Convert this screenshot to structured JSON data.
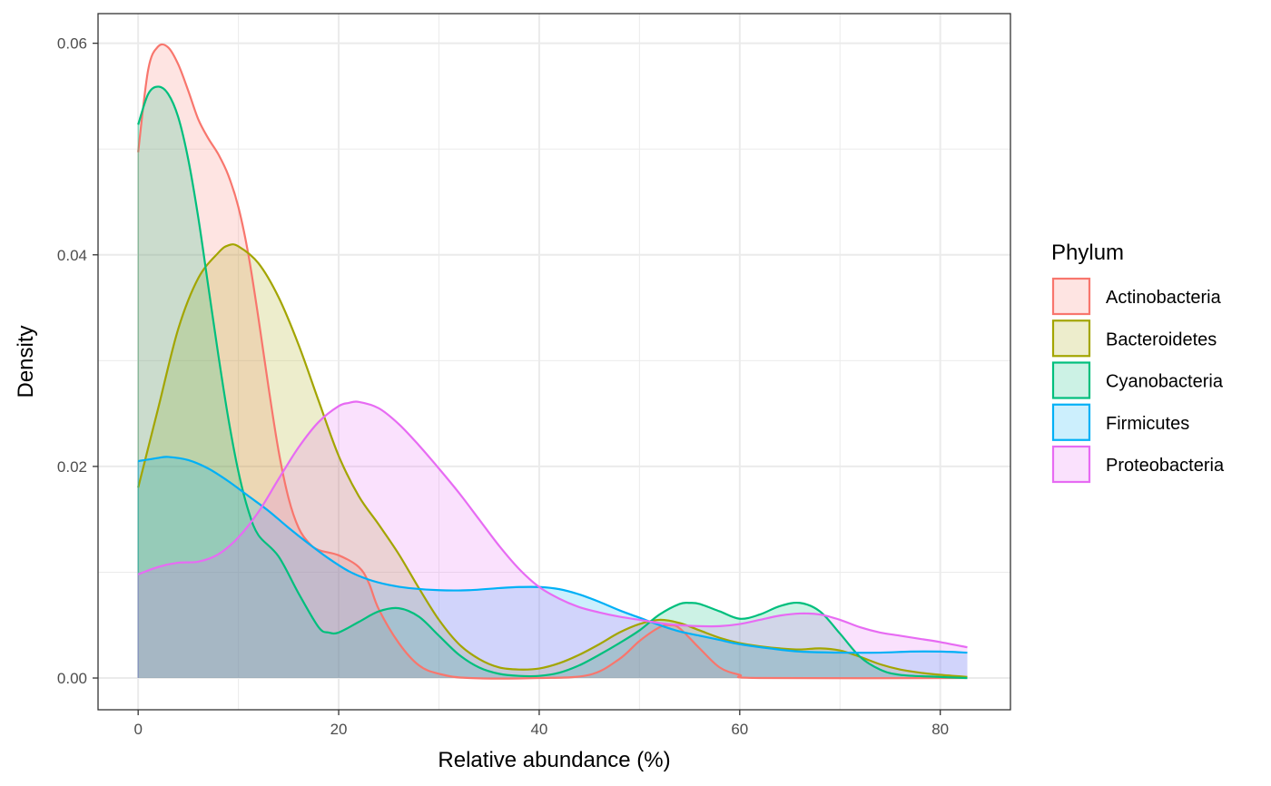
{
  "chart_data": {
    "type": "area",
    "subtype": "density",
    "title": "",
    "xlabel": "Relative abundance (%)",
    "ylabel": "Density",
    "xlim": [
      -4,
      87
    ],
    "ylim": [
      -0.003,
      0.0628
    ],
    "x_ticks": [
      0,
      20,
      40,
      60,
      80
    ],
    "x_tick_labels": [
      "0",
      "20",
      "40",
      "60",
      "80"
    ],
    "y_ticks": [
      0,
      0.02,
      0.04,
      0.06
    ],
    "y_tick_labels": [
      "0.00",
      "0.02",
      "0.04",
      "0.06"
    ],
    "grid": true,
    "legend": {
      "title": "Phylum",
      "placement": "right"
    },
    "fill_opacity": 0.2,
    "series": [
      {
        "name": "Actinobacteria",
        "color": "#F8766D",
        "points": [
          [
            0,
            0.0497
          ],
          [
            1,
            0.0575
          ],
          [
            2,
            0.0597
          ],
          [
            3,
            0.0596
          ],
          [
            4,
            0.058
          ],
          [
            5,
            0.0555
          ],
          [
            6,
            0.0528
          ],
          [
            7,
            0.051
          ],
          [
            8,
            0.0495
          ],
          [
            9,
            0.0475
          ],
          [
            10,
            0.0445
          ],
          [
            11,
            0.04
          ],
          [
            12,
            0.034
          ],
          [
            13,
            0.0275
          ],
          [
            14,
            0.0215
          ],
          [
            15,
            0.017
          ],
          [
            16,
            0.0142
          ],
          [
            17,
            0.0128
          ],
          [
            18,
            0.0121
          ],
          [
            20,
            0.0116
          ],
          [
            22,
            0.0105
          ],
          [
            23,
            0.009
          ],
          [
            24,
            0.0065
          ],
          [
            26,
            0.0033
          ],
          [
            28,
            0.0012
          ],
          [
            30,
            0.0004
          ],
          [
            33,
            0.0
          ],
          [
            40,
            0.0
          ],
          [
            45,
            0.0003
          ],
          [
            48,
            0.0018
          ],
          [
            50,
            0.0035
          ],
          [
            52,
            0.0048
          ],
          [
            53,
            0.005
          ],
          [
            54,
            0.0047
          ],
          [
            56,
            0.0028
          ],
          [
            58,
            0.001
          ],
          [
            60,
            0.0003
          ],
          [
            62,
            0.0
          ],
          [
            82.7,
            0.0
          ]
        ]
      },
      {
        "name": "Bacteroidetes",
        "color": "#A3A500",
        "points": [
          [
            0,
            0.018
          ],
          [
            2,
            0.0255
          ],
          [
            4,
            0.033
          ],
          [
            6,
            0.0378
          ],
          [
            8,
            0.0402
          ],
          [
            9,
            0.0409
          ],
          [
            10,
            0.0408
          ],
          [
            12,
            0.0392
          ],
          [
            14,
            0.036
          ],
          [
            16,
            0.0315
          ],
          [
            18,
            0.0262
          ],
          [
            20,
            0.021
          ],
          [
            22,
            0.0172
          ],
          [
            24,
            0.0145
          ],
          [
            26,
            0.0117
          ],
          [
            28,
            0.0085
          ],
          [
            30,
            0.0055
          ],
          [
            32,
            0.0032
          ],
          [
            34,
            0.0018
          ],
          [
            36,
            0.001
          ],
          [
            38,
            0.0008
          ],
          [
            40,
            0.0009
          ],
          [
            42,
            0.0014
          ],
          [
            44,
            0.0022
          ],
          [
            46,
            0.0032
          ],
          [
            48,
            0.0043
          ],
          [
            50,
            0.0051
          ],
          [
            52,
            0.0055
          ],
          [
            54,
            0.0052
          ],
          [
            56,
            0.0045
          ],
          [
            58,
            0.0038
          ],
          [
            60,
            0.0033
          ],
          [
            62,
            0.003
          ],
          [
            64,
            0.0028
          ],
          [
            66,
            0.0027
          ],
          [
            68,
            0.0028
          ],
          [
            70,
            0.0026
          ],
          [
            72,
            0.002
          ],
          [
            74,
            0.0013
          ],
          [
            76,
            0.0008
          ],
          [
            78,
            0.0005
          ],
          [
            80,
            0.0003
          ],
          [
            82.7,
            0.0001
          ]
        ]
      },
      {
        "name": "Cyanobacteria",
        "color": "#00BF7D",
        "points": [
          [
            0,
            0.0523
          ],
          [
            1,
            0.0552
          ],
          [
            2,
            0.0559
          ],
          [
            3,
            0.0552
          ],
          [
            4,
            0.053
          ],
          [
            5,
            0.049
          ],
          [
            6,
            0.0435
          ],
          [
            7,
            0.037
          ],
          [
            8,
            0.0305
          ],
          [
            9,
            0.0245
          ],
          [
            10,
            0.0195
          ],
          [
            11,
            0.0158
          ],
          [
            12,
            0.0135
          ],
          [
            14,
            0.0115
          ],
          [
            16,
            0.008
          ],
          [
            18,
            0.0048
          ],
          [
            19,
            0.0043
          ],
          [
            20,
            0.0043
          ],
          [
            22,
            0.0053
          ],
          [
            24,
            0.0063
          ],
          [
            26,
            0.0066
          ],
          [
            28,
            0.0058
          ],
          [
            30,
            0.004
          ],
          [
            32,
            0.0022
          ],
          [
            34,
            0.001
          ],
          [
            36,
            0.0004
          ],
          [
            38,
            0.0002
          ],
          [
            40,
            0.0002
          ],
          [
            42,
            0.0005
          ],
          [
            44,
            0.0012
          ],
          [
            46,
            0.0022
          ],
          [
            48,
            0.0033
          ],
          [
            50,
            0.0045
          ],
          [
            52,
            0.006
          ],
          [
            54,
            0.007
          ],
          [
            55,
            0.0071
          ],
          [
            56,
            0.007
          ],
          [
            58,
            0.0063
          ],
          [
            60,
            0.0056
          ],
          [
            62,
            0.006
          ],
          [
            64,
            0.0068
          ],
          [
            66,
            0.0071
          ],
          [
            68,
            0.0063
          ],
          [
            70,
            0.0042
          ],
          [
            72,
            0.002
          ],
          [
            74,
            0.0008
          ],
          [
            76,
            0.0003
          ],
          [
            80,
            0.0001
          ],
          [
            82.7,
            0.0
          ]
        ]
      },
      {
        "name": "Firmicutes",
        "color": "#00B0F6",
        "points": [
          [
            0,
            0.0205
          ],
          [
            2,
            0.0208
          ],
          [
            3,
            0.0209
          ],
          [
            5,
            0.0206
          ],
          [
            7,
            0.0198
          ],
          [
            9,
            0.0186
          ],
          [
            11,
            0.0172
          ],
          [
            13,
            0.0158
          ],
          [
            15,
            0.0142
          ],
          [
            17,
            0.0127
          ],
          [
            19,
            0.0113
          ],
          [
            21,
            0.0101
          ],
          [
            23,
            0.0093
          ],
          [
            25,
            0.0088
          ],
          [
            27,
            0.0085
          ],
          [
            30,
            0.0083
          ],
          [
            33,
            0.0083
          ],
          [
            36,
            0.0085
          ],
          [
            38,
            0.0086
          ],
          [
            40,
            0.0086
          ],
          [
            42,
            0.0084
          ],
          [
            44,
            0.0079
          ],
          [
            46,
            0.0072
          ],
          [
            48,
            0.0064
          ],
          [
            50,
            0.0057
          ],
          [
            52,
            0.005
          ],
          [
            54,
            0.0044
          ],
          [
            56,
            0.004
          ],
          [
            58,
            0.0036
          ],
          [
            60,
            0.0032
          ],
          [
            63,
            0.0028
          ],
          [
            66,
            0.0025
          ],
          [
            70,
            0.0024
          ],
          [
            74,
            0.0024
          ],
          [
            77,
            0.0025
          ],
          [
            80,
            0.0025
          ],
          [
            82.7,
            0.0024
          ]
        ]
      },
      {
        "name": "Proteobacteria",
        "color": "#E76BF3",
        "points": [
          [
            0,
            0.0098
          ],
          [
            2,
            0.0105
          ],
          [
            4,
            0.0109
          ],
          [
            6,
            0.011
          ],
          [
            8,
            0.0117
          ],
          [
            10,
            0.0133
          ],
          [
            12,
            0.0157
          ],
          [
            14,
            0.0188
          ],
          [
            16,
            0.0218
          ],
          [
            18,
            0.0242
          ],
          [
            20,
            0.0257
          ],
          [
            21,
            0.026
          ],
          [
            22,
            0.0261
          ],
          [
            24,
            0.0255
          ],
          [
            26,
            0.024
          ],
          [
            28,
            0.022
          ],
          [
            30,
            0.0198
          ],
          [
            32,
            0.0175
          ],
          [
            34,
            0.015
          ],
          [
            36,
            0.0125
          ],
          [
            38,
            0.0103
          ],
          [
            40,
            0.0086
          ],
          [
            42,
            0.0075
          ],
          [
            44,
            0.0067
          ],
          [
            46,
            0.0062
          ],
          [
            48,
            0.0058
          ],
          [
            50,
            0.0055
          ],
          [
            52,
            0.0052
          ],
          [
            54,
            0.005
          ],
          [
            56,
            0.0049
          ],
          [
            58,
            0.0049
          ],
          [
            60,
            0.0051
          ],
          [
            62,
            0.0055
          ],
          [
            64,
            0.0059
          ],
          [
            66,
            0.0061
          ],
          [
            68,
            0.006
          ],
          [
            70,
            0.0055
          ],
          [
            72,
            0.0048
          ],
          [
            74,
            0.0043
          ],
          [
            76,
            0.004
          ],
          [
            78,
            0.0037
          ],
          [
            80,
            0.0034
          ],
          [
            82.7,
            0.0029
          ]
        ]
      }
    ]
  }
}
